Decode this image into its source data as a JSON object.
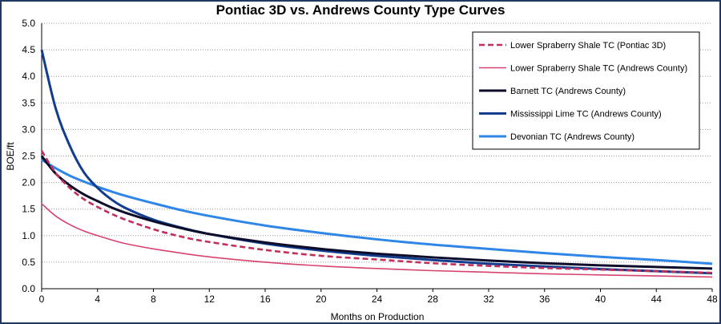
{
  "chart_data": {
    "type": "line",
    "title": "Pontiac 3D vs. Andrews County Type Curves",
    "xlabel": "Months on Production",
    "ylabel": "BOE/ft",
    "xlim": [
      0,
      48
    ],
    "ylim": [
      0,
      5.0
    ],
    "x_ticks": [
      0,
      4,
      8,
      12,
      16,
      20,
      24,
      28,
      32,
      36,
      40,
      44,
      48
    ],
    "y_ticks": [
      "0.0",
      "0.5",
      "1.0",
      "1.5",
      "2.0",
      "2.5",
      "3.0",
      "3.5",
      "4.0",
      "4.5",
      "5.0"
    ],
    "grid": "horizontal dotted",
    "legend_position": "top-right",
    "x": [
      0,
      1,
      2,
      3,
      4,
      5,
      6,
      8,
      10,
      12,
      16,
      20,
      24,
      28,
      32,
      36,
      40,
      44,
      48
    ],
    "series": [
      {
        "name": "Lower Spraberry Shale TC (Pontiac 3D)",
        "color": "#c0305a",
        "style": "dashed",
        "values": [
          2.6,
          2.18,
          1.9,
          1.69,
          1.54,
          1.41,
          1.3,
          1.12,
          0.98,
          0.88,
          0.73,
          0.62,
          0.55,
          0.48,
          0.43,
          0.39,
          0.36,
          0.33,
          0.3
        ]
      },
      {
        "name": "Lower Spraberry Shale TC (Andrews County)",
        "color": "#d6436e",
        "style": "thin",
        "values": [
          1.6,
          1.37,
          1.21,
          1.09,
          1.0,
          0.92,
          0.85,
          0.75,
          0.67,
          0.6,
          0.5,
          0.43,
          0.38,
          0.34,
          0.31,
          0.28,
          0.26,
          0.24,
          0.22
        ]
      },
      {
        "name": "Barnett TC (Andrews County)",
        "color": "#0d0d2b",
        "style": "thick",
        "values": [
          2.5,
          2.17,
          1.95,
          1.78,
          1.65,
          1.53,
          1.43,
          1.27,
          1.14,
          1.03,
          0.87,
          0.75,
          0.66,
          0.59,
          0.53,
          0.48,
          0.44,
          0.41,
          0.38
        ]
      },
      {
        "name": "Mississippi Lime TC (Andrews County)",
        "color": "#123d8f",
        "style": "thick",
        "values": [
          4.5,
          3.4,
          2.7,
          2.2,
          1.9,
          1.68,
          1.52,
          1.3,
          1.15,
          1.03,
          0.85,
          0.72,
          0.62,
          0.54,
          0.47,
          0.42,
          0.37,
          0.33,
          0.29
        ]
      },
      {
        "name": "Devonian TC (Andrews County)",
        "color": "#2f86e6",
        "style": "thick",
        "values": [
          2.43,
          2.27,
          2.13,
          2.02,
          1.92,
          1.83,
          1.75,
          1.61,
          1.48,
          1.37,
          1.19,
          1.05,
          0.93,
          0.83,
          0.75,
          0.67,
          0.6,
          0.54,
          0.47
        ]
      }
    ]
  }
}
